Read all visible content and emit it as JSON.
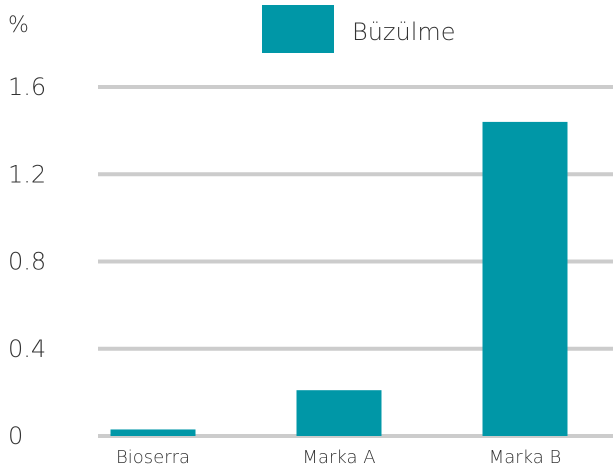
{
  "chart_data": {
    "type": "bar",
    "y_label": "%",
    "legend": "Büzülme",
    "categories": [
      "Bioserra",
      "Marka A",
      "Marka B"
    ],
    "series": [
      {
        "name": "Büzülme",
        "color": "#0097a7",
        "values": [
          0.03,
          0.21,
          1.44
        ]
      }
    ],
    "ylim": [
      0,
      1.6
    ],
    "yticks": [
      0,
      0.4,
      0.8,
      1.2,
      1.6
    ],
    "grid": true
  }
}
